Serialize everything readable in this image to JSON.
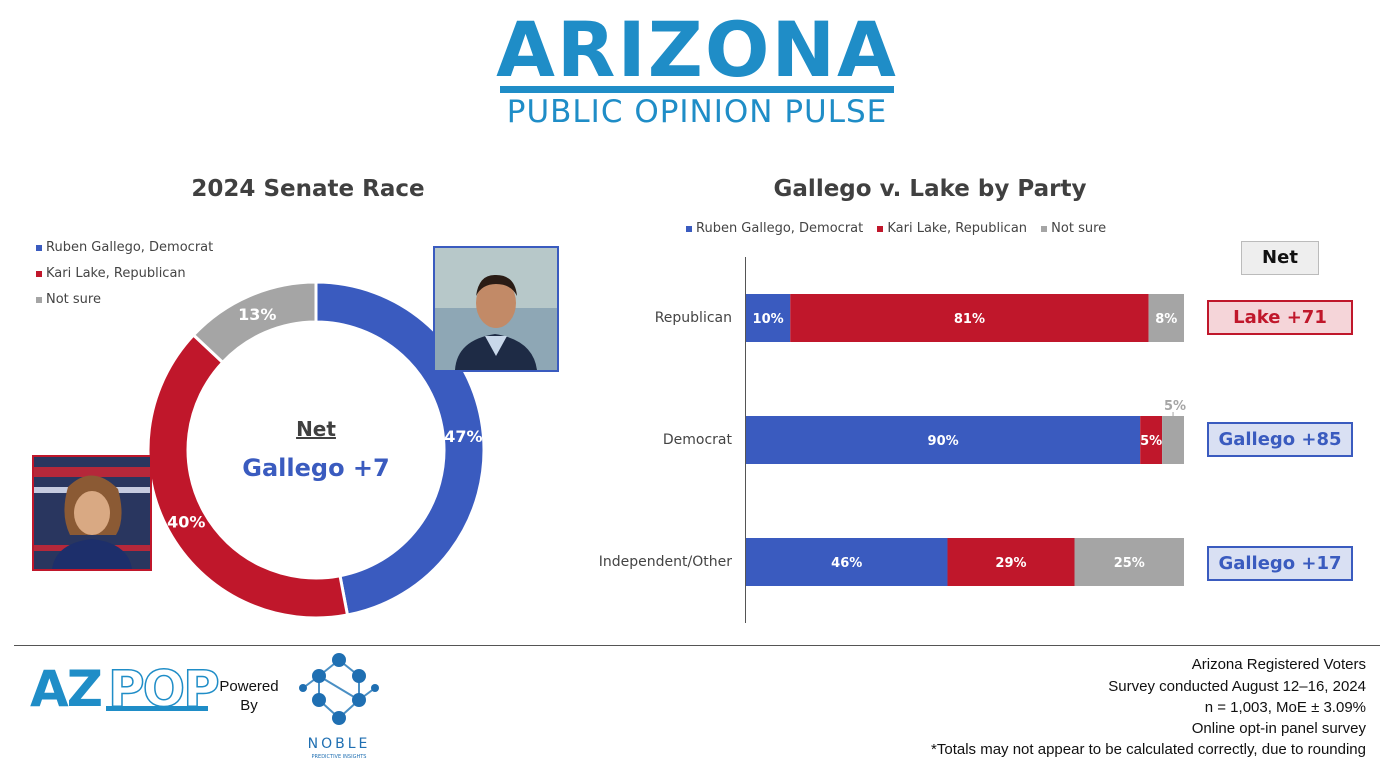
{
  "header": {
    "title": "Arizona",
    "subtitle": "PUBLIC OPINION PULSE"
  },
  "left_panel": {
    "title": "2024 Senate Race",
    "center_label": "Net",
    "center_value": "Gallego +7"
  },
  "right_panel": {
    "title": "Gallego v. Lake by Party",
    "net_header": "Net",
    "nets": [
      {
        "text": "Lake +71",
        "party": "rep"
      },
      {
        "text": "Gallego +85",
        "party": "dem"
      },
      {
        "text": "Gallego +17",
        "party": "dem"
      }
    ]
  },
  "colors": {
    "dem": "#3a5bbf",
    "rep": "#c0172b",
    "unsure": "#a5a5a5",
    "brand": "#1f8dc7",
    "dem_box_bg": "#d9e0f3",
    "rep_box_bg": "#f5d5d9",
    "net_header_bg": "#eeeeee"
  },
  "chart_data": [
    {
      "type": "pie",
      "variant": "donut",
      "title": "2024 Senate Race",
      "legend": "top-left",
      "labels": [
        "Ruben Gallego, Democrat",
        "Kari Lake, Republican",
        "Not sure"
      ],
      "values": [
        47,
        40,
        13
      ],
      "value_labels": [
        "47%",
        "40%",
        "13%"
      ]
    },
    {
      "type": "bar",
      "orientation": "horizontal",
      "stacked": true,
      "title": "Gallego v. Lake by Party",
      "legend": "top",
      "categories": [
        "Republican",
        "Democrat",
        "Independent/Other"
      ],
      "series": [
        {
          "name": "Ruben Gallego, Democrat",
          "values": [
            10,
            90,
            46
          ]
        },
        {
          "name": "Kari Lake, Republican",
          "values": [
            81,
            5,
            29
          ]
        },
        {
          "name": "Not sure",
          "values": [
            8,
            5,
            25
          ]
        }
      ],
      "value_labels": [
        [
          "10%",
          "81%",
          "8%"
        ],
        [
          "90%",
          "5%",
          "5%"
        ],
        [
          "46%",
          "29%",
          "25%"
        ]
      ],
      "xlim": [
        0,
        100
      ],
      "grid": false
    }
  ],
  "footer": {
    "logo_text_1": "AZ",
    "logo_text_2": "POP",
    "powered_by_1": "Powered",
    "powered_by_2": "By",
    "noble_name": "NOBLE",
    "noble_sub": "PREDICTIVE INSIGHTS",
    "lines": [
      "Arizona Registered Voters",
      "Survey conducted August 12–16, 2024",
      "n = 1,003, MoE ± 3.09%",
      "Online opt-in panel survey",
      "*Totals may not appear to be calculated correctly, due to rounding"
    ]
  }
}
